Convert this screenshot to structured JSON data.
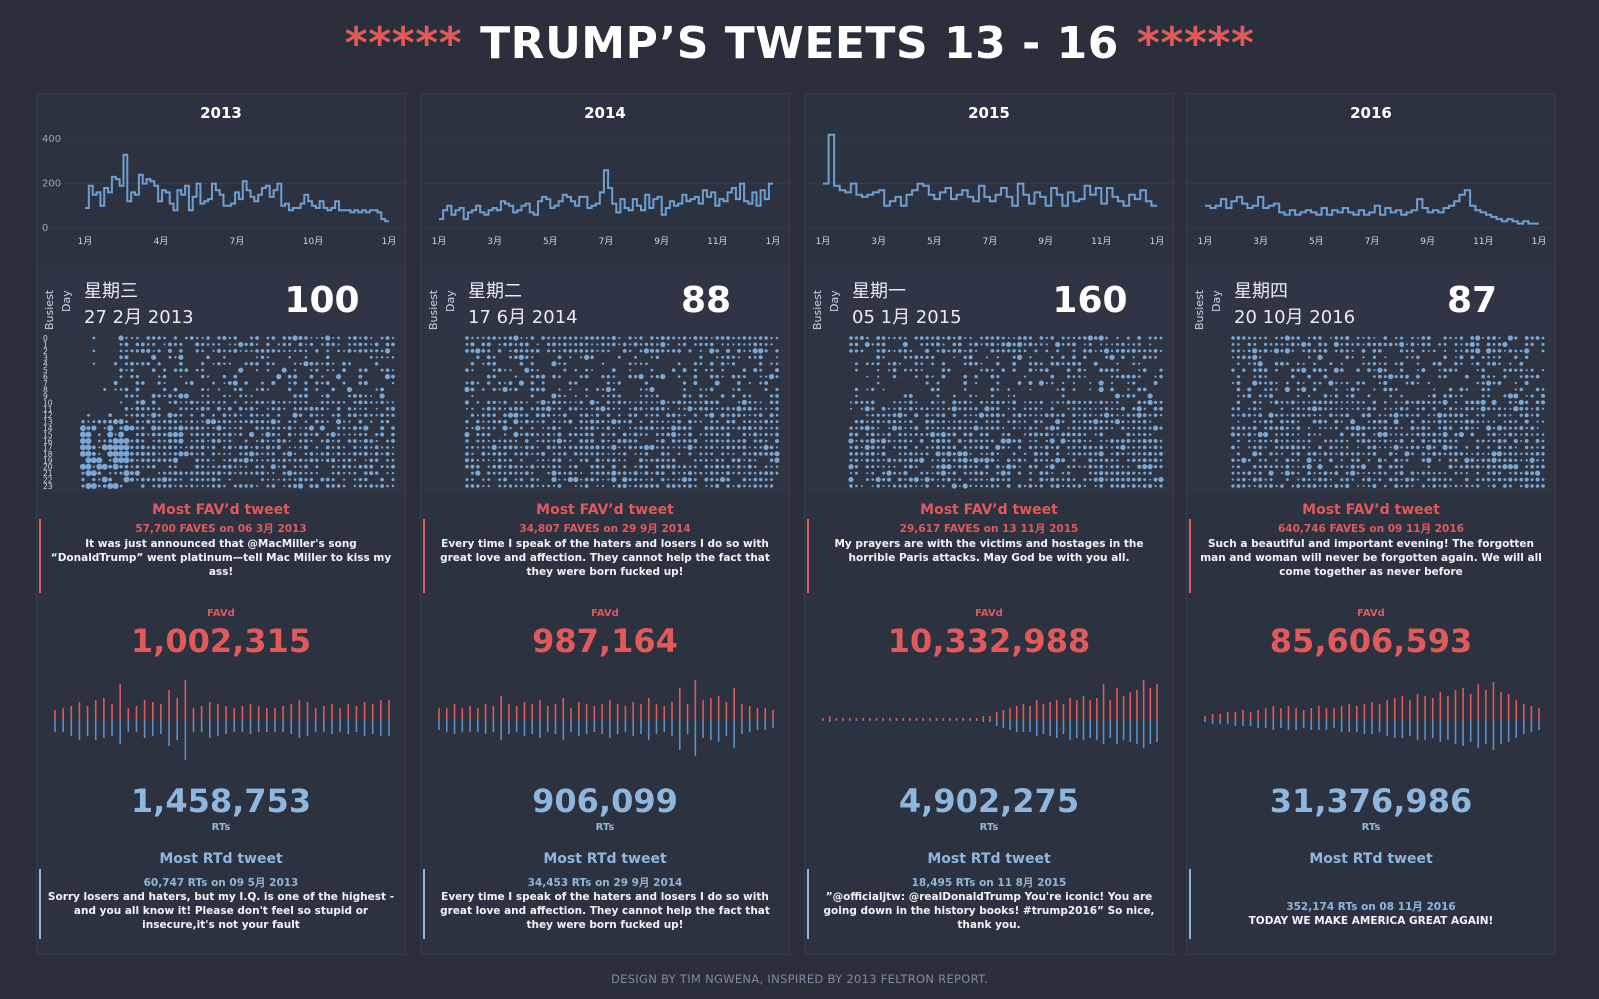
{
  "title": {
    "stars_left": "*****",
    "text": "TRUMP’S TWEETS 13 - 16",
    "stars_right": "*****"
  },
  "footer": "DESIGN BY TIM NGWENA, INSPIRED BY 2013 FELTRON REPORT.",
  "colors": {
    "red": "#e05a5c",
    "blue": "#8fb6dc",
    "line": "#6f9fd0",
    "background": "#2a2f3b"
  },
  "labels": {
    "busiest": "Busiest",
    "day": "Day",
    "most_fav": "Most FAV’d tweet",
    "favd": "FAVd",
    "rts": "RTs",
    "most_rt": "Most RTd tweet"
  },
  "hour_labels": [
    "0",
    "1",
    "2",
    "3",
    "4",
    "5",
    "6",
    "7",
    "8",
    "9",
    "10",
    "11",
    "12",
    "13",
    "14",
    "15",
    "16",
    "17",
    "18",
    "19",
    "20",
    "21",
    "22",
    "23"
  ],
  "years": [
    {
      "year": "2013",
      "busy_day": "星期三",
      "busy_date": "27 2月 2013",
      "busy_count": "100",
      "fav_meta": "57,700 FAVES  on  06 3月 2013",
      "fav_tweet": "It was just announced that @MacMiller's song “DonaldTrump” went platinum—tell  Mac Miller to kiss my ass!",
      "favd_total": "1,002,315",
      "rts_total": "1,458,753",
      "rt_meta": "60,747 RTs  on  09 5月 2013",
      "rt_tweet": "Sorry losers and haters, but my I.Q. is one of the highest -and you all know it! Please don't feel so stupid or insecure,it's not your fault",
      "x_ticks": [
        "1月",
        "4月",
        "7月",
        "10月",
        "1月"
      ],
      "y_ticks": [
        "400",
        "200",
        "0"
      ]
    },
    {
      "year": "2014",
      "busy_day": "星期二",
      "busy_date": "17 6月 2014",
      "busy_count": "88",
      "fav_meta": "34,807 FAVES  on  29 9月 2014",
      "fav_tweet": "Every time I speak of the haters and losers I do so with great love and affection. They cannot help the fact that they were born fucked up!",
      "favd_total": "987,164",
      "rts_total": "906,099",
      "rt_meta": "34,453 RTs  on  29 9月 2014",
      "rt_tweet": "Every time I speak of the haters and losers I do so with great love and affection. They cannot help the fact that they were born fucked up!",
      "x_ticks": [
        "1月",
        "3月",
        "5月",
        "7月",
        "9月",
        "11月",
        "1月"
      ],
      "y_ticks": []
    },
    {
      "year": "2015",
      "busy_day": "星期一",
      "busy_date": "05 1月 2015",
      "busy_count": "160",
      "fav_meta": "29,617 FAVES  on  13 11月 2015",
      "fav_tweet": "My prayers are with the victims and hostages in the horrible Paris attacks. May God be with you all.",
      "favd_total": "10,332,988",
      "rts_total": "4,902,275",
      "rt_meta": "18,495 RTs  on  11 8月 2015",
      "rt_tweet": "”@officialjtw: @realDonaldTrump You're iconic! You are going down in the history books! #trump2016”  So nice, thank you.",
      "x_ticks": [
        "1月",
        "3月",
        "5月",
        "7月",
        "9月",
        "11月",
        "1月"
      ],
      "y_ticks": []
    },
    {
      "year": "2016",
      "busy_day": "星期四",
      "busy_date": "20 10月 2016",
      "busy_count": "87",
      "fav_meta": "640,746 FAVES  on  09 11月 2016",
      "fav_tweet": "Such a beautiful and important evening! The forgotten man and woman will never be forgotten again. We will all come together as never before",
      "favd_total": "85,606,593",
      "rts_total": "31,376,986",
      "rt_meta": "352,174 RTs  on  08 11月 2016",
      "rt_tweet": "TODAY WE MAKE AMERICA GREAT AGAIN!",
      "x_ticks": [
        "1月",
        "3月",
        "5月",
        "7月",
        "9月",
        "11月",
        "1月"
      ],
      "y_ticks": []
    }
  ],
  "chart_data": [
    {
      "type": "line",
      "ylim": [
        0,
        450
      ],
      "series": [
        {
          "name": "2013",
          "values": [
            90,
            190,
            150,
            160,
            100,
            180,
            160,
            230,
            220,
            190,
            330,
            120,
            160,
            150,
            240,
            200,
            220,
            210,
            190,
            120,
            170,
            160,
            110,
            80,
            170,
            150,
            190,
            80,
            140,
            200,
            110,
            120,
            130,
            200,
            170,
            150,
            100,
            100,
            110,
            160,
            130,
            210,
            170,
            140,
            120,
            150,
            180,
            190,
            140,
            170,
            200,
            100,
            110,
            80,
            90,
            90,
            110,
            150,
            120,
            100,
            90,
            120,
            90,
            80,
            90,
            120,
            80,
            80,
            80,
            70,
            80,
            70,
            80,
            70,
            80,
            80,
            70,
            40,
            30
          ]
        },
        {
          "name": "2014",
          "values": [
            40,
            80,
            100,
            60,
            80,
            90,
            40,
            70,
            80,
            100,
            70,
            60,
            80,
            90,
            80,
            120,
            110,
            100,
            70,
            80,
            100,
            110,
            70,
            60,
            120,
            140,
            130,
            90,
            100,
            120,
            150,
            140,
            120,
            100,
            140,
            140,
            90,
            100,
            110,
            160,
            260,
            180,
            110,
            70,
            130,
            90,
            80,
            130,
            100,
            80,
            150,
            90,
            130,
            140,
            60,
            90,
            120,
            100,
            110,
            150,
            120,
            130,
            140,
            110,
            170,
            140,
            160,
            100,
            130,
            120,
            160,
            180,
            130,
            200,
            120,
            110,
            160,
            100,
            170,
            130,
            200
          ]
        },
        {
          "name": "2015",
          "values": [
            200,
            420,
            190,
            170,
            160,
            200,
            150,
            140,
            150,
            160,
            170,
            100,
            120,
            140,
            100,
            150,
            170,
            200,
            190,
            150,
            130,
            160,
            180,
            130,
            150,
            170,
            140,
            120,
            190,
            140,
            120,
            150,
            180,
            140,
            100,
            200,
            150,
            110,
            160,
            140,
            100,
            180,
            150,
            100,
            160,
            120,
            130,
            190,
            150,
            180,
            110,
            180,
            140,
            120,
            100,
            150,
            130,
            170,
            120,
            100
          ]
        },
        {
          "name": "2016",
          "values": [
            100,
            90,
            100,
            130,
            90,
            120,
            140,
            110,
            90,
            100,
            140,
            90,
            100,
            110,
            70,
            60,
            80,
            60,
            70,
            80,
            70,
            60,
            90,
            60,
            80,
            70,
            90,
            70,
            60,
            80,
            60,
            70,
            100,
            60,
            90,
            70,
            80,
            60,
            70,
            80,
            130,
            90,
            70,
            80,
            70,
            90,
            100,
            120,
            150,
            170,
            100,
            80,
            70,
            60,
            50,
            40,
            30,
            40,
            30,
            20,
            30,
            20,
            20
          ]
        }
      ]
    },
    {
      "type": "bar",
      "ylabel": "FAVd",
      "series": [
        {
          "name": "2013",
          "values": [
            0.25,
            0.3,
            0.35,
            0.45,
            0.35,
            0.5,
            0.55,
            0.4,
            0.9,
            0.3,
            0.35,
            0.5,
            0.45,
            0.4,
            0.75,
            0.55,
            1.0,
            0.3,
            0.35,
            0.45,
            0.4,
            0.35,
            0.3,
            0.35,
            0.4,
            0.35,
            0.3,
            0.3,
            0.35,
            0.4,
            0.5,
            0.45,
            0.3,
            0.35,
            0.4,
            0.3,
            0.4,
            0.35,
            0.45,
            0.4,
            0.5,
            0.5
          ]
        },
        {
          "name": "2014",
          "values": [
            0.3,
            0.3,
            0.4,
            0.3,
            0.35,
            0.3,
            0.4,
            0.35,
            0.6,
            0.4,
            0.35,
            0.45,
            0.4,
            0.5,
            0.35,
            0.4,
            0.55,
            0.3,
            0.45,
            0.4,
            0.35,
            0.4,
            0.5,
            0.4,
            0.35,
            0.45,
            0.4,
            0.55,
            0.4,
            0.35,
            0.45,
            0.8,
            0.4,
            1.0,
            0.5,
            0.55,
            0.6,
            0.45,
            0.8,
            0.4,
            0.35,
            0.3,
            0.3,
            0.25
          ]
        },
        {
          "name": "2015",
          "values": [
            0.05,
            0.1,
            0.05,
            0.05,
            0.05,
            0.05,
            0.05,
            0.05,
            0.05,
            0.05,
            0.05,
            0.05,
            0.05,
            0.05,
            0.05,
            0.05,
            0.05,
            0.05,
            0.05,
            0.05,
            0.05,
            0.05,
            0.05,
            0.05,
            0.1,
            0.1,
            0.2,
            0.25,
            0.3,
            0.35,
            0.4,
            0.35,
            0.5,
            0.4,
            0.45,
            0.5,
            0.4,
            0.55,
            0.5,
            0.6,
            0.5,
            0.55,
            0.9,
            0.5,
            0.8,
            0.6,
            0.7,
            0.75,
            1.0,
            0.8,
            0.9
          ]
        },
        {
          "name": "2016",
          "values": [
            0.1,
            0.15,
            0.15,
            0.2,
            0.2,
            0.25,
            0.2,
            0.25,
            0.3,
            0.35,
            0.3,
            0.35,
            0.3,
            0.25,
            0.3,
            0.35,
            0.3,
            0.3,
            0.35,
            0.4,
            0.35,
            0.4,
            0.45,
            0.4,
            0.5,
            0.55,
            0.6,
            0.5,
            0.65,
            0.6,
            0.55,
            0.7,
            0.6,
            0.75,
            0.8,
            0.65,
            0.9,
            0.75,
            0.95,
            0.7,
            0.65,
            0.5,
            0.4,
            0.35,
            0.3
          ]
        }
      ]
    },
    {
      "type": "bar",
      "ylabel": "RTs",
      "series": [
        {
          "name": "2013",
          "values": [
            0.3,
            0.3,
            0.4,
            0.5,
            0.4,
            0.5,
            0.45,
            0.4,
            0.6,
            0.3,
            0.3,
            0.45,
            0.4,
            0.35,
            0.65,
            0.5,
            1.0,
            0.3,
            0.3,
            0.45,
            0.4,
            0.35,
            0.3,
            0.3,
            0.35,
            0.3,
            0.3,
            0.3,
            0.3,
            0.35,
            0.45,
            0.4,
            0.3,
            0.3,
            0.35,
            0.3,
            0.35,
            0.3,
            0.4,
            0.35,
            0.4,
            0.4
          ]
        },
        {
          "name": "2014",
          "values": [
            0.25,
            0.3,
            0.35,
            0.3,
            0.3,
            0.3,
            0.35,
            0.3,
            0.5,
            0.35,
            0.3,
            0.4,
            0.35,
            0.45,
            0.3,
            0.35,
            0.5,
            0.3,
            0.4,
            0.35,
            0.3,
            0.35,
            0.45,
            0.35,
            0.3,
            0.4,
            0.35,
            0.5,
            0.35,
            0.3,
            0.4,
            0.75,
            0.35,
            0.9,
            0.45,
            0.5,
            0.55,
            0.4,
            0.7,
            0.35,
            0.3,
            0.25,
            0.25,
            0.2
          ]
        },
        {
          "name": "2015",
          "values": [
            0.02,
            0.05,
            0.02,
            0.02,
            0.02,
            0.02,
            0.02,
            0.02,
            0.02,
            0.02,
            0.02,
            0.02,
            0.02,
            0.02,
            0.02,
            0.02,
            0.02,
            0.02,
            0.02,
            0.02,
            0.02,
            0.02,
            0.02,
            0.02,
            0.05,
            0.05,
            0.15,
            0.2,
            0.25,
            0.3,
            0.3,
            0.3,
            0.4,
            0.35,
            0.4,
            0.45,
            0.35,
            0.5,
            0.45,
            0.5,
            0.45,
            0.5,
            0.6,
            0.45,
            0.6,
            0.5,
            0.55,
            0.6,
            0.7,
            0.6,
            0.55
          ]
        },
        {
          "name": "2016",
          "values": [
            0.05,
            0.1,
            0.1,
            0.1,
            0.15,
            0.15,
            0.15,
            0.2,
            0.2,
            0.25,
            0.2,
            0.25,
            0.25,
            0.2,
            0.25,
            0.25,
            0.25,
            0.2,
            0.3,
            0.3,
            0.3,
            0.35,
            0.35,
            0.3,
            0.4,
            0.45,
            0.45,
            0.4,
            0.5,
            0.5,
            0.45,
            0.55,
            0.5,
            0.6,
            0.65,
            0.55,
            0.7,
            0.6,
            0.75,
            0.6,
            0.55,
            0.45,
            0.35,
            0.3,
            0.25
          ]
        }
      ]
    }
  ]
}
